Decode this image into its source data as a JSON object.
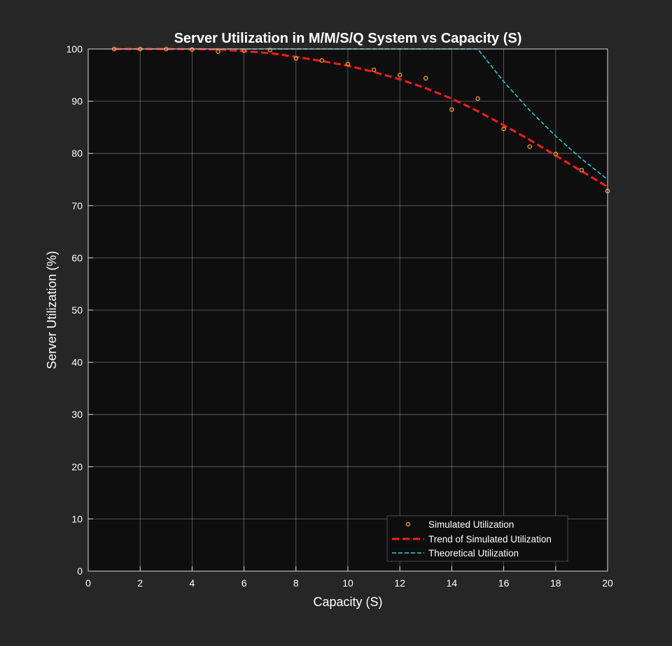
{
  "colors": {
    "figure_bg": "#262626",
    "axes_bg": "#0e0e0e",
    "grid": "#b0b0b0",
    "axis_line": "#d9d9d9",
    "text": "#ffffff",
    "simulated": "#f5a623",
    "trend": "#ff1a1a",
    "theoretical": "#22d3e8",
    "legend_bg": "#0e0e0e",
    "legend_border": "#4a4a4a"
  },
  "chart_data": {
    "type": "line",
    "title": "Server Utilization in M/M/S/Q System vs Capacity (S)",
    "xlabel": "Capacity (S)",
    "ylabel": "Server Utilization (%)",
    "xlim": [
      0,
      20
    ],
    "ylim": [
      0,
      100
    ],
    "xticks": [
      0,
      2,
      4,
      6,
      8,
      10,
      12,
      14,
      16,
      18,
      20
    ],
    "yticks": [
      0,
      10,
      20,
      30,
      40,
      50,
      60,
      70,
      80,
      90,
      100
    ],
    "grid": true,
    "legend_position": "bottom-right",
    "series": [
      {
        "name": "Simulated Utilization",
        "style": "markers",
        "x": [
          1,
          2,
          3,
          4,
          5,
          6,
          7,
          8,
          9,
          10,
          11,
          12,
          13,
          14,
          15,
          16,
          17,
          18,
          19,
          20
        ],
        "y": [
          100,
          100,
          100,
          99.9,
          99.5,
          99.7,
          99.8,
          98.2,
          97.8,
          97.1,
          96.0,
          95.0,
          94.4,
          88.4,
          90.5,
          84.7,
          81.3,
          79.9,
          76.8,
          72.8
        ]
      },
      {
        "name": "Trend of Simulated Utilization",
        "style": "dashed",
        "x": [
          1,
          2,
          3,
          4,
          5,
          6,
          7,
          8,
          9,
          10,
          11,
          12,
          13,
          14,
          15,
          16,
          17,
          18,
          19,
          20
        ],
        "y": [
          100,
          100,
          100,
          100,
          99.9,
          99.6,
          99.2,
          98.5,
          97.7,
          96.8,
          95.6,
          94.2,
          92.5,
          90.5,
          88.1,
          85.4,
          82.6,
          79.6,
          76.6,
          73.6
        ]
      },
      {
        "name": "Theoretical Utilization",
        "style": "dash-thin",
        "x": [
          1,
          2,
          3,
          4,
          5,
          6,
          7,
          8,
          9,
          10,
          11,
          12,
          13,
          14,
          15,
          16,
          17,
          18,
          19,
          20
        ],
        "y": [
          100,
          100,
          100,
          100,
          100,
          100,
          100,
          100,
          100,
          100,
          100,
          100,
          100,
          100,
          100,
          93.75,
          88.24,
          83.33,
          78.95,
          75.0
        ]
      }
    ]
  }
}
